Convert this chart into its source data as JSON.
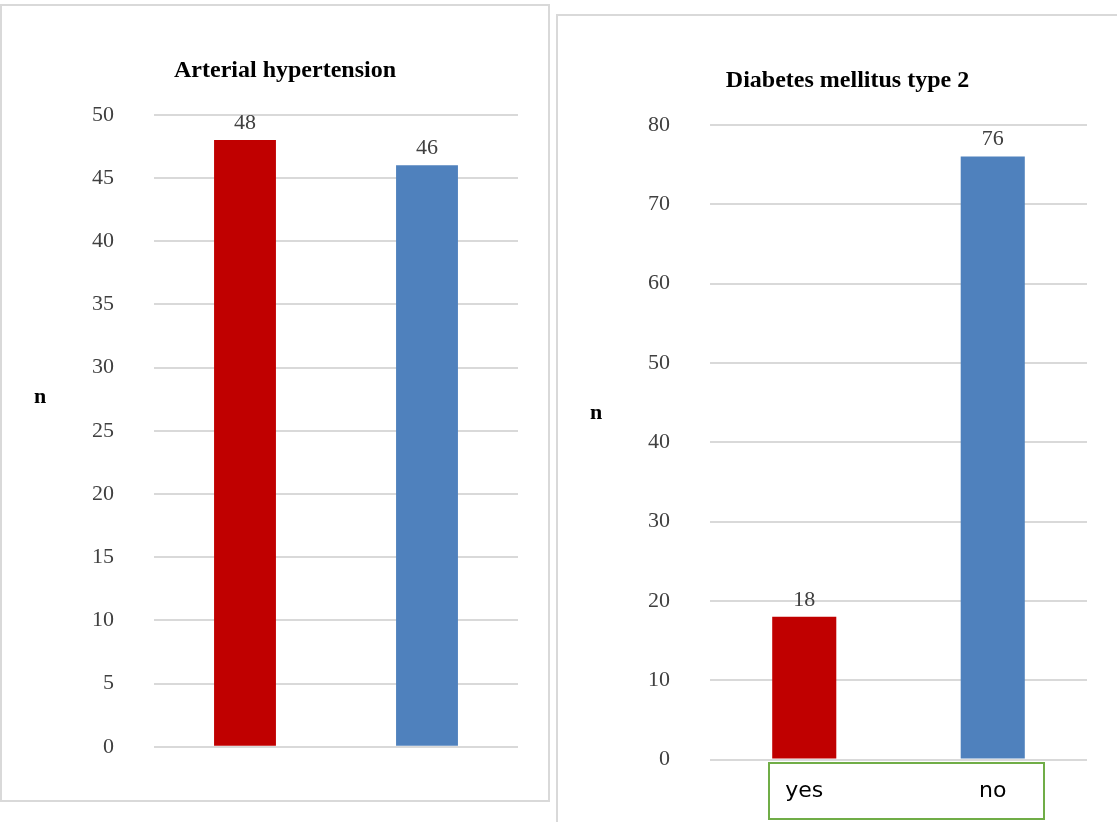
{
  "chart_data": [
    {
      "type": "bar",
      "title": "Arterial hypertension",
      "ylabel": "n",
      "categories": [
        null,
        null
      ],
      "values": [
        48,
        46
      ],
      "colors": [
        "#c00000",
        "#4f81bd"
      ],
      "ylim": [
        0,
        50
      ],
      "yticks": [
        0,
        5,
        10,
        15,
        20,
        25,
        30,
        35,
        40,
        45,
        50
      ],
      "grid": "y",
      "legend": false,
      "data_labels": true,
      "tick_labels": "y"
    },
    {
      "type": "bar",
      "title": "Diabetes mellitus type 2",
      "ylabel": "n",
      "categories": [
        "yes",
        "no"
      ],
      "values": [
        18,
        76
      ],
      "colors": [
        "#c00000",
        "#4f81bd"
      ],
      "ylim": [
        0,
        80
      ],
      "yticks": [
        0,
        10,
        20,
        30,
        40,
        50,
        60,
        70,
        80
      ],
      "grid": "y",
      "legend": false,
      "data_labels": true
    }
  ]
}
